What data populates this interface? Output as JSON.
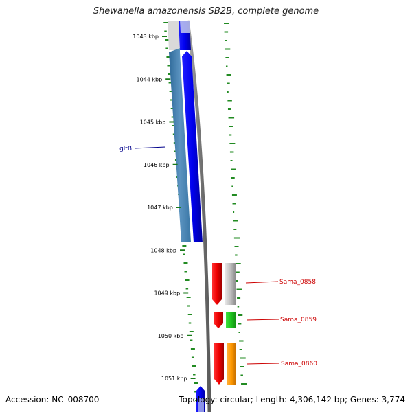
{
  "title": "Shewanella amazonensis SB2B, complete genome",
  "footer": {
    "accession": "Accession: NC_008700",
    "summary": "Topology: circular; Length: 4,306,142 bp; Genes: 3,774"
  },
  "ticks": [
    {
      "label": "1043 kbp",
      "kbp": 1043
    },
    {
      "label": "1044 kbp",
      "kbp": 1044
    },
    {
      "label": "1045 kbp",
      "kbp": 1045
    },
    {
      "label": "1046 kbp",
      "kbp": 1046
    },
    {
      "label": "1047 kbp",
      "kbp": 1047
    },
    {
      "label": "1048 kbp",
      "kbp": 1048
    },
    {
      "label": "1049 kbp",
      "kbp": 1049
    },
    {
      "label": "1050 kbp",
      "kbp": 1050
    },
    {
      "label": "1051 kbp",
      "kbp": 1051
    }
  ],
  "gene_labels": [
    {
      "name": "gltB",
      "color": "#00008b"
    },
    {
      "name": "Sama_0858",
      "color": "#cc0000"
    },
    {
      "name": "Sama_0859",
      "color": "#cc0000"
    },
    {
      "name": "Sama_0860",
      "color": "#cc0000"
    }
  ],
  "colors": {
    "backbone": "#808080",
    "cds": "#0000ee",
    "gene": "#4682b4",
    "rna_gene": "#ee0000",
    "tick": "#1a7a1a",
    "gc_skew": "#228b22"
  }
}
